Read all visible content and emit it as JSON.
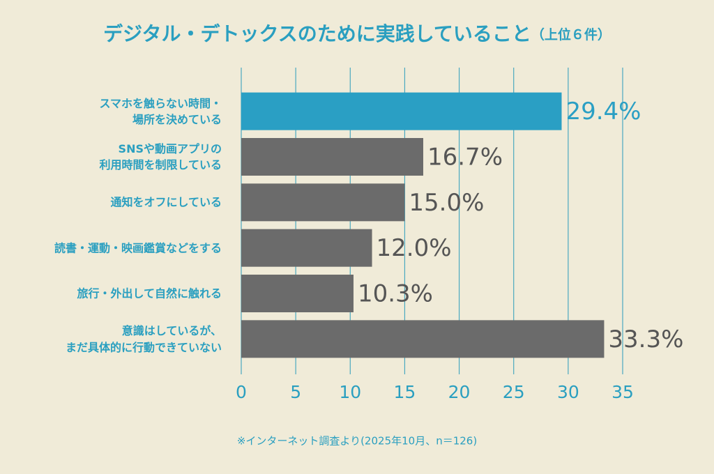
{
  "chart_data": {
    "type": "bar",
    "orientation": "horizontal",
    "title": "デジタル・デトックスのために実践していること",
    "subtitle": "（上位６件）",
    "categories": [
      "スマホを触らない時間・\n場所を決めている",
      "SNSや動画アプリの\n利用時間を制限している",
      "通知をオフにしている",
      "読書・運動・映画鑑賞などをする",
      "旅行・外出して自然に触れる",
      "意識はしているが、\nまだ具体的に行動できていない"
    ],
    "values": [
      29.4,
      16.7,
      15.0,
      12.0,
      10.3,
      33.3
    ],
    "value_labels": [
      "29.4%",
      "16.7%",
      "15.0%",
      "12.0%",
      "10.3%",
      "33.3%"
    ],
    "colors": [
      "#2a9fc4",
      "#6b6b6b",
      "#6b6b6b",
      "#6b6b6b",
      "#6b6b6b",
      "#6b6b6b"
    ],
    "xlim": [
      0,
      35
    ],
    "xticks": [
      0,
      5,
      10,
      15,
      20,
      25,
      30,
      35
    ],
    "grid": true,
    "note": "※インターネット調査より(2025年10月、n＝126)"
  }
}
